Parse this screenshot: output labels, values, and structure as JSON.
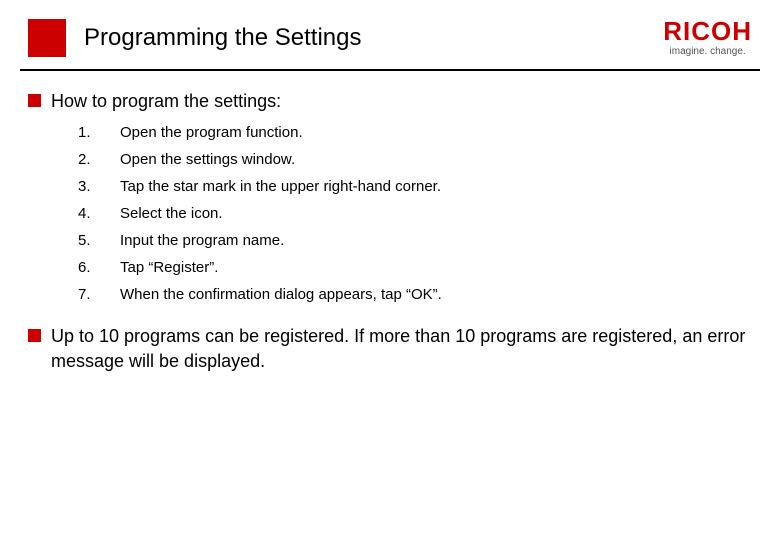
{
  "colors": {
    "brand_red": "#cc0000",
    "text": "#000000",
    "tagline": "#555555",
    "background": "#ffffff"
  },
  "typography": {
    "title_fontsize": 24,
    "section_fontsize": 18,
    "step_fontsize": 15,
    "logo_fontsize": 26,
    "tagline_fontsize": 10
  },
  "header": {
    "title": "Programming the Settings",
    "logo": "RICOH",
    "tagline": "imagine. change."
  },
  "section1": {
    "heading": "How to program the settings:"
  },
  "steps": [
    {
      "num": "1.",
      "text": "Open the program function."
    },
    {
      "num": "2.",
      "text": "Open the settings window."
    },
    {
      "num": "3.",
      "text": "Tap the star mark in the upper right-hand corner."
    },
    {
      "num": "4.",
      "text": "Select the icon."
    },
    {
      "num": "5.",
      "text": "Input the program name."
    },
    {
      "num": "6.",
      "text": "Tap “Register”."
    },
    {
      "num": "7.",
      "text": "When the confirmation dialog appears, tap “OK”."
    }
  ],
  "section2": {
    "text": "Up to 10 programs can be registered. If more than 10 programs are registered, an error message will be displayed."
  }
}
